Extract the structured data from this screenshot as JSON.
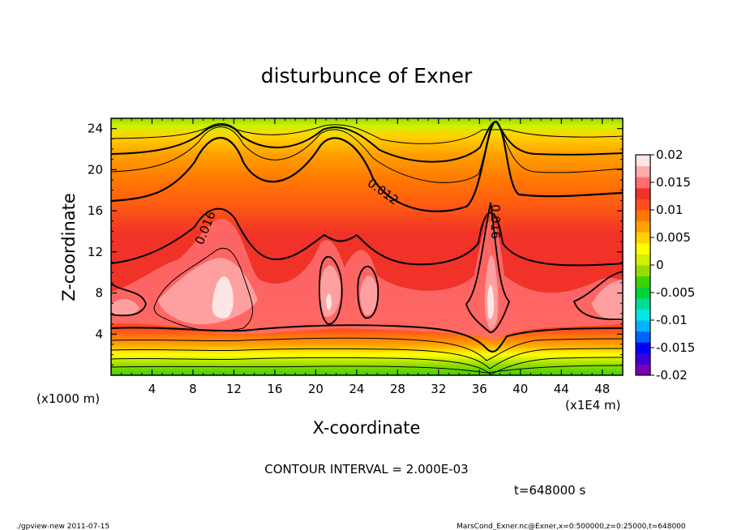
{
  "chart_data": {
    "type": "heatmap",
    "title": "disturbunce of Exner",
    "xlabel": "X-coordinate",
    "ylabel": "Z-coordinate",
    "x_ticks": [
      "4",
      "8",
      "12",
      "16",
      "20",
      "24",
      "28",
      "32",
      "36",
      "40",
      "44",
      "48"
    ],
    "x_tick_values": [
      4,
      8,
      12,
      16,
      20,
      24,
      28,
      32,
      36,
      40,
      44,
      48
    ],
    "y_ticks": [
      "4",
      "8",
      "12",
      "16",
      "20",
      "24"
    ],
    "y_tick_values": [
      4,
      8,
      12,
      16,
      20,
      24
    ],
    "xlim": [
      0,
      50
    ],
    "ylim": [
      0,
      25
    ],
    "x_unit": "(x1E4 m)",
    "y_unit": "(x1000 m)",
    "colorbar": {
      "ticks": [
        "0.02",
        "0.015",
        "0.01",
        "0.005",
        "0",
        "-0.005",
        "-0.01",
        "-0.015",
        "-0.02"
      ],
      "tick_values": [
        0.02,
        0.015,
        0.01,
        0.005,
        0,
        -0.005,
        -0.01,
        -0.015,
        -0.02
      ],
      "range": [
        -0.02,
        0.02
      ],
      "colors": [
        "#7a00b4",
        "#3c00dc",
        "#0000ff",
        "#0064ff",
        "#00b4ff",
        "#00e6e6",
        "#00dc96",
        "#00d23c",
        "#3cd200",
        "#96dc00",
        "#d2f000",
        "#ffff00",
        "#ffd200",
        "#ffa000",
        "#ff7800",
        "#ff4b1e",
        "#f03228",
        "#ff6e6e",
        "#ffaaaa",
        "#ffe6e6"
      ]
    },
    "contour_labels": [
      "0.016",
      "0.012",
      "0.016"
    ],
    "contour_interval_text": "CONTOUR INTERVAL = 2.000E-03",
    "time_text": "t=648000 s"
  },
  "footer": {
    "left": "./gpview-new   2011-07-15",
    "right": "MarsCond_Exner.nc@Exner,x=0:500000,z=0:25000,t=648000"
  }
}
